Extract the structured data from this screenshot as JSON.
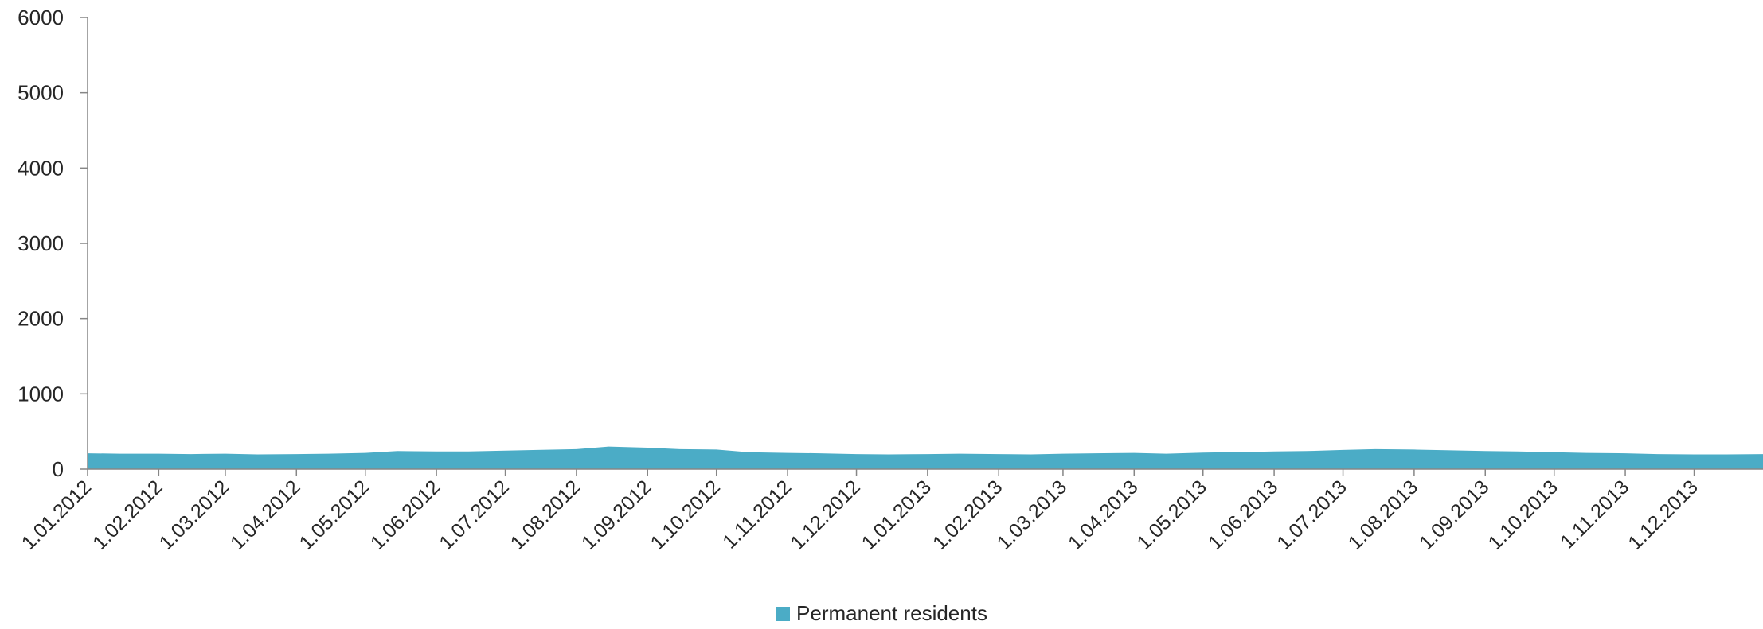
{
  "chart_data": {
    "type": "area",
    "title": "",
    "xlabel": "",
    "ylabel": "",
    "ylim": [
      0,
      6000
    ],
    "yticks": [
      "0",
      "1000",
      "2000",
      "3000",
      "4000",
      "5000",
      "6000"
    ],
    "x_tick_labels": [
      "1.01.2012",
      "1.02.2012",
      "1.03.2012",
      "1.04.2012",
      "1.05.2012",
      "1.06.2012",
      "1.07.2012",
      "1.08.2012",
      "1.09.2012",
      "1.10.2012",
      "1.11.2012",
      "1.12.2012",
      "1.01.2013",
      "1.02.2013",
      "1.03.2013",
      "1.04.2013",
      "1.05.2013",
      "1.06.2013",
      "1.07.2013",
      "1.08.2013",
      "1.09.2013",
      "1.10.2013",
      "1.11.2013",
      "1.12.2013"
    ],
    "x_range": [
      "2012-01-01",
      "2013-12-31"
    ],
    "grid": false,
    "legend_position": "bottom",
    "series": [
      {
        "name": "Permanent residents",
        "color": "#4bacc6",
        "x": [
          "2012-01-01",
          "2012-01-15",
          "2012-02-01",
          "2012-02-15",
          "2012-03-01",
          "2012-03-15",
          "2012-04-01",
          "2012-04-15",
          "2012-05-01",
          "2012-05-15",
          "2012-06-01",
          "2012-06-15",
          "2012-07-01",
          "2012-07-15",
          "2012-08-01",
          "2012-08-15",
          "2012-09-01",
          "2012-09-15",
          "2012-10-01",
          "2012-10-15",
          "2012-11-01",
          "2012-11-15",
          "2012-12-01",
          "2012-12-15",
          "2013-01-01",
          "2013-01-15",
          "2013-02-01",
          "2013-02-15",
          "2013-03-01",
          "2013-03-15",
          "2013-04-01",
          "2013-04-15",
          "2013-05-01",
          "2013-05-15",
          "2013-06-01",
          "2013-06-15",
          "2013-07-01",
          "2013-07-15",
          "2013-08-01",
          "2013-08-15",
          "2013-09-01",
          "2013-09-15",
          "2013-10-01",
          "2013-10-15",
          "2013-11-01",
          "2013-11-15",
          "2013-12-01",
          "2013-12-15",
          "2013-12-31"
        ],
        "values": [
          210,
          205,
          205,
          200,
          205,
          195,
          200,
          205,
          215,
          240,
          235,
          235,
          245,
          255,
          265,
          300,
          285,
          265,
          260,
          225,
          215,
          210,
          200,
          195,
          200,
          205,
          200,
          195,
          205,
          210,
          215,
          205,
          220,
          225,
          235,
          240,
          255,
          265,
          260,
          250,
          240,
          235,
          225,
          215,
          210,
          200,
          195,
          195,
          200
        ]
      }
    ]
  }
}
